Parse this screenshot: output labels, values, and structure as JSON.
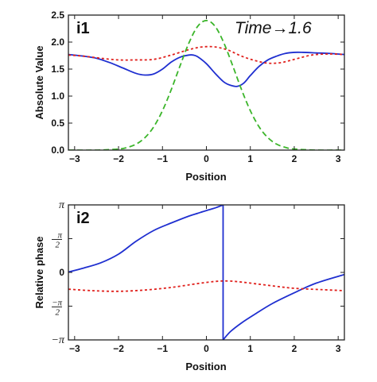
{
  "chart_data": [
    {
      "id": "i1",
      "type": "line",
      "panel_label": "i1",
      "annotation": "Time→1.6",
      "xlabel": "Position",
      "ylabel": "Absolute Value",
      "xlim": [
        -3.14159,
        3.14159
      ],
      "ylim": [
        0,
        2.5
      ],
      "xticks": [
        -3,
        -2,
        -1,
        0,
        1,
        2,
        3
      ],
      "xtick_labels": [
        "−3",
        "−2",
        "−1",
        "0",
        "1",
        "2",
        "3"
      ],
      "yticks": [
        0,
        0.5,
        1.0,
        1.5,
        2.0,
        2.5
      ],
      "ytick_labels": [
        "0.0",
        "0.5",
        "1.0",
        "1.5",
        "2.0",
        "2.5"
      ],
      "grid": false,
      "series": [
        {
          "style": "solid",
          "color": "#1f2fd0",
          "x": [
            -3.14,
            -2.8,
            -2.5,
            -2.2,
            -1.9,
            -1.6,
            -1.4,
            -1.2,
            -1.0,
            -0.8,
            -0.6,
            -0.4,
            -0.3,
            -0.2,
            0.0,
            0.2,
            0.4,
            0.55,
            0.7,
            0.85,
            1.0,
            1.2,
            1.4,
            1.6,
            1.8,
            2.0,
            2.2,
            2.5,
            2.8,
            3.14
          ],
          "y": [
            1.77,
            1.74,
            1.7,
            1.62,
            1.52,
            1.42,
            1.39,
            1.41,
            1.5,
            1.63,
            1.72,
            1.76,
            1.76,
            1.73,
            1.6,
            1.42,
            1.26,
            1.2,
            1.18,
            1.24,
            1.38,
            1.55,
            1.67,
            1.74,
            1.79,
            1.81,
            1.81,
            1.8,
            1.79,
            1.77
          ]
        },
        {
          "style": "dotted",
          "color": "#e0201c",
          "x": [
            -3.14,
            -2.8,
            -2.4,
            -2.0,
            -1.6,
            -1.2,
            -0.8,
            -0.4,
            -0.1,
            0.2,
            0.5,
            0.8,
            1.1,
            1.4,
            1.7,
            2.0,
            2.4,
            2.8,
            3.14
          ],
          "y": [
            1.76,
            1.74,
            1.7,
            1.67,
            1.67,
            1.68,
            1.76,
            1.86,
            1.91,
            1.91,
            1.85,
            1.74,
            1.66,
            1.61,
            1.62,
            1.68,
            1.76,
            1.78,
            1.77
          ]
        },
        {
          "style": "dashed",
          "color": "#3bb52a",
          "x": [
            -3.14,
            -2.5,
            -2.0,
            -1.8,
            -1.6,
            -1.4,
            -1.2,
            -1.0,
            -0.8,
            -0.6,
            -0.4,
            -0.2,
            0.0,
            0.2,
            0.4,
            0.6,
            0.8,
            1.0,
            1.2,
            1.4,
            1.6,
            1.8,
            2.0,
            2.5,
            3.14
          ],
          "y": [
            0.0,
            0.0,
            0.02,
            0.05,
            0.11,
            0.23,
            0.43,
            0.73,
            1.12,
            1.56,
            1.98,
            2.29,
            2.4,
            2.29,
            1.98,
            1.56,
            1.12,
            0.73,
            0.43,
            0.23,
            0.11,
            0.05,
            0.02,
            0.0,
            0.0
          ]
        }
      ]
    },
    {
      "id": "i2",
      "type": "line",
      "panel_label": "i2",
      "xlabel": "Position",
      "ylabel": "Relative phase",
      "xlim": [
        -3.14159,
        3.14159
      ],
      "ylim": [
        -3.14159,
        3.14159
      ],
      "xticks": [
        -3,
        -2,
        -1,
        0,
        1,
        2,
        3
      ],
      "xtick_labels": [
        "−3",
        "−2",
        "−1",
        "0",
        "1",
        "2",
        "3"
      ],
      "yticks": [
        -3.14159,
        -1.5708,
        0,
        1.5708,
        3.14159
      ],
      "ytick_labels": [
        "−π",
        "−π/2",
        "0",
        "π/2",
        "π"
      ],
      "grid": false,
      "series": [
        {
          "style": "solid",
          "color": "#1f2fd0",
          "x": [
            -3.14,
            -2.8,
            -2.4,
            -2.0,
            -1.6,
            -1.2,
            -0.8,
            -0.4,
            -0.2,
            0.0,
            0.2,
            0.38,
            0.38,
            0.55,
            0.8,
            1.1,
            1.5,
            2.0,
            2.5,
            3.14
          ],
          "y": [
            0.02,
            0.2,
            0.45,
            0.85,
            1.45,
            1.95,
            2.3,
            2.62,
            2.75,
            2.88,
            3.0,
            3.14,
            -3.14,
            -2.75,
            -2.35,
            -1.95,
            -1.45,
            -0.95,
            -0.5,
            -0.1
          ]
        },
        {
          "style": "dotted",
          "color": "#e0201c",
          "x": [
            -3.14,
            -2.6,
            -2.0,
            -1.4,
            -0.8,
            -0.2,
            0.2,
            0.5,
            0.8,
            1.2,
            1.6,
            2.0,
            2.6,
            3.14
          ],
          "y": [
            -0.78,
            -0.85,
            -0.88,
            -0.82,
            -0.7,
            -0.52,
            -0.42,
            -0.4,
            -0.45,
            -0.55,
            -0.65,
            -0.74,
            -0.8,
            -0.85
          ]
        }
      ]
    }
  ]
}
